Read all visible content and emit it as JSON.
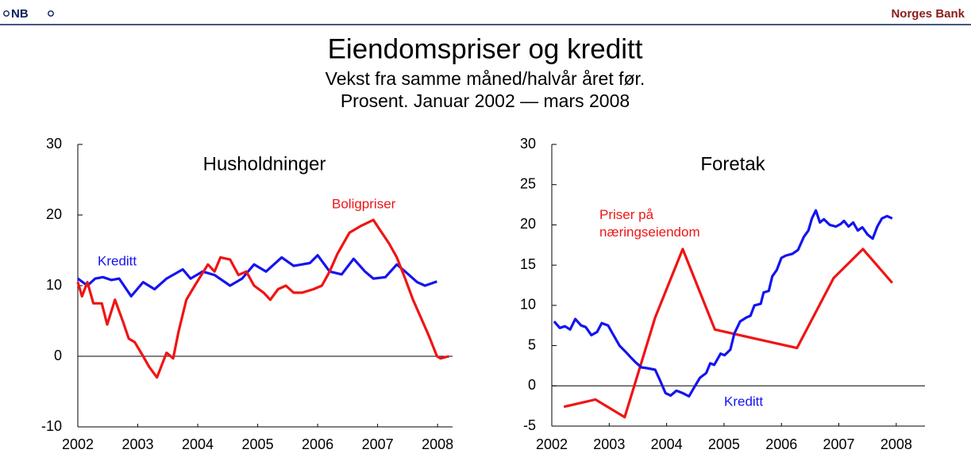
{
  "header": {
    "logo": "NB",
    "brand": "Norges Bank"
  },
  "title": "Eiendomspriser og kreditt",
  "subtitle_lines": [
    "Vekst fra samme måned/halvår året før.",
    "Prosent. Januar 2002 — mars 2008"
  ],
  "chart_data": [
    {
      "type": "line",
      "title": "Husholdninger",
      "xlim": [
        2002,
        2008.25
      ],
      "xticks": [
        2002,
        2003,
        2004,
        2005,
        2006,
        2007,
        2008
      ],
      "ylim": [
        -10,
        30
      ],
      "yticks": [
        -10,
        0,
        10,
        20,
        30
      ],
      "zero_line": true,
      "grid": false,
      "series": [
        {
          "name": "Kreditt",
          "color": "#1414f0",
          "x": [
            2002.0,
            2002.16,
            2002.29,
            2002.42,
            2002.56,
            2002.69,
            2002.89,
            2003.09,
            2003.28,
            2003.48,
            2003.75,
            2003.88,
            2004.08,
            2004.28,
            2004.54,
            2004.74,
            2004.94,
            2005.14,
            2005.4,
            2005.6,
            2005.87,
            2006.0,
            2006.2,
            2006.4,
            2006.6,
            2006.79,
            2006.93,
            2007.13,
            2007.32,
            2007.46,
            2007.66,
            2007.79,
            2007.99
          ],
          "values": [
            11,
            10,
            11,
            11.2,
            10.8,
            11,
            8.5,
            10.5,
            9.5,
            11,
            12.3,
            11,
            12,
            11.5,
            10,
            11,
            13,
            12,
            14,
            12.8,
            13.2,
            14.3,
            12,
            11.6,
            13.8,
            12,
            11,
            11.2,
            13,
            12,
            10.5,
            10,
            10.6
          ]
        },
        {
          "name": "Boligpriser",
          "color": "#f01414",
          "x": [
            2002.0,
            2002.07,
            2002.16,
            2002.26,
            2002.4,
            2002.49,
            2002.62,
            2002.75,
            2002.85,
            2002.95,
            2003.09,
            2003.19,
            2003.32,
            2003.48,
            2003.59,
            2003.68,
            2003.81,
            2003.95,
            2004.17,
            2004.28,
            2004.38,
            2004.54,
            2004.68,
            2004.81,
            2004.94,
            2005.1,
            2005.21,
            2005.34,
            2005.47,
            2005.6,
            2005.74,
            2005.93,
            2006.07,
            2006.2,
            2006.33,
            2006.53,
            2006.73,
            2006.93,
            2007.03,
            2007.19,
            2007.32,
            2007.46,
            2007.59,
            2007.72,
            2007.85,
            2007.99,
            2008.05,
            2008.19
          ],
          "values": [
            10.5,
            8.5,
            10.5,
            7.5,
            7.5,
            4.5,
            8,
            5,
            2.5,
            2,
            0,
            -1.5,
            -3,
            0.5,
            -0.3,
            3.5,
            8,
            10,
            13,
            12,
            14,
            13.7,
            11.5,
            12,
            10,
            9,
            8,
            9.5,
            10,
            9,
            9,
            9.5,
            10,
            12,
            14.5,
            17.5,
            18.5,
            19.3,
            18,
            16,
            14,
            11,
            8,
            5.5,
            3,
            0,
            -0.3,
            0
          ]
        }
      ]
    },
    {
      "type": "line",
      "title": "Foretak",
      "xlim": [
        2002,
        2008.5
      ],
      "xticks": [
        2002,
        2003,
        2004,
        2005,
        2006,
        2007,
        2008
      ],
      "ylim": [
        -5,
        30
      ],
      "yticks": [
        -5,
        0,
        5,
        10,
        15,
        20,
        25,
        30
      ],
      "zero_line": true,
      "grid": false,
      "series": [
        {
          "name": "Priser på\nnæringseiendom",
          "color": "#f01414",
          "x": [
            2002.21,
            2002.76,
            2003.27,
            2003.8,
            2004.28,
            2004.84,
            2005.46,
            2006.27,
            2006.91,
            2007.42,
            2007.93
          ],
          "values": [
            -2.6,
            -1.7,
            -3.9,
            8.5,
            17,
            7,
            6,
            4.7,
            13.4,
            17,
            12.8
          ]
        },
        {
          "name": "Kreditt",
          "color": "#1414f0",
          "x": [
            2002.04,
            2002.14,
            2002.23,
            2002.32,
            2002.41,
            2002.51,
            2002.59,
            2002.69,
            2002.79,
            2002.87,
            2002.98,
            2003.06,
            2003.18,
            2003.29,
            2003.38,
            2003.45,
            2003.56,
            2003.66,
            2003.8,
            2003.89,
            2003.98,
            2004.07,
            2004.17,
            2004.28,
            2004.39,
            2004.48,
            2004.58,
            2004.69,
            2004.76,
            2004.83,
            2004.94,
            2005.01,
            2005.11,
            2005.18,
            2005.28,
            2005.39,
            2005.46,
            2005.53,
            2005.64,
            2005.69,
            2005.78,
            2005.84,
            2005.92,
            2006.0,
            2006.08,
            2006.19,
            2006.29,
            2006.39,
            2006.47,
            2006.53,
            2006.6,
            2006.67,
            2006.74,
            2006.84,
            2006.95,
            2007.03,
            2007.09,
            2007.17,
            2007.25,
            2007.33,
            2007.41,
            2007.5,
            2007.59,
            2007.67,
            2007.75,
            2007.84,
            2007.93
          ],
          "values": [
            8,
            7.2,
            7.4,
            7,
            8.3,
            7.5,
            7.3,
            6.3,
            6.7,
            7.8,
            7.5,
            6.5,
            5,
            4.2,
            3.5,
            3,
            2.3,
            2.2,
            2,
            0.6,
            -0.9,
            -1.2,
            -0.6,
            -0.9,
            -1.3,
            -0.2,
            1,
            1.6,
            2.8,
            2.6,
            4,
            3.8,
            4.5,
            6.5,
            8,
            8.5,
            8.7,
            10,
            10.2,
            11.6,
            11.8,
            13.6,
            14.4,
            15.9,
            16.2,
            16.4,
            16.9,
            18.5,
            19.3,
            20.8,
            21.8,
            20.3,
            20.7,
            20,
            19.8,
            20.1,
            20.5,
            19.8,
            20.3,
            19.3,
            19.7,
            18.8,
            18.3,
            19.8,
            20.8,
            21.1,
            20.8
          ]
        }
      ]
    }
  ]
}
